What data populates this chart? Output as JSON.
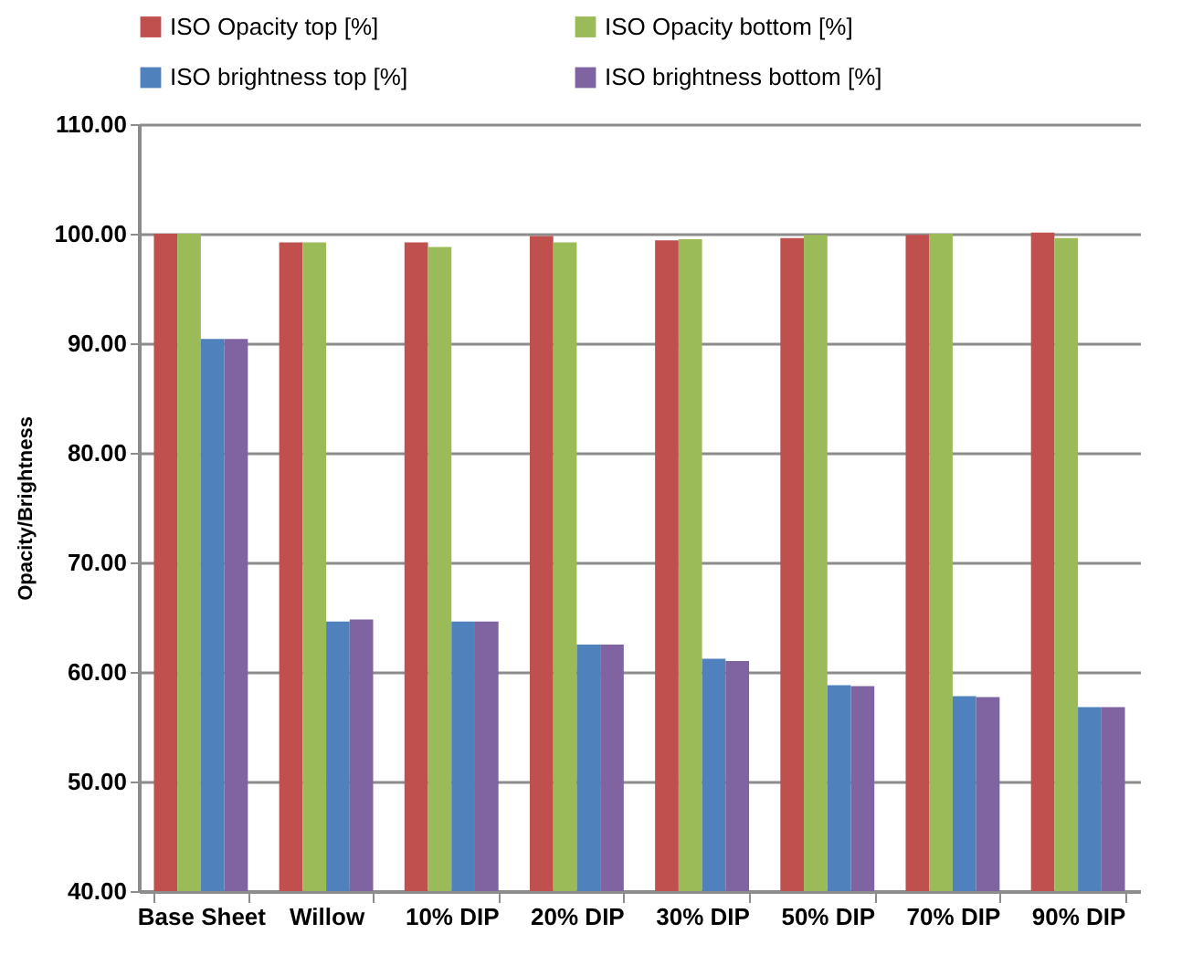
{
  "chart_data": {
    "type": "bar",
    "ylabel": "Opacity/Brightness",
    "categories": [
      "Base Sheet",
      "Willow",
      "10% DIP",
      "20% DIP",
      "30% DIP",
      "50% DIP",
      "70% DIP",
      "90% DIP"
    ],
    "series": [
      {
        "name": "ISO Opacity top [%]",
        "color": "#c0504d",
        "values": [
          100.0,
          99.2,
          99.2,
          99.8,
          99.4,
          99.6,
          99.9,
          100.1
        ]
      },
      {
        "name": "ISO Opacity bottom [%]",
        "color": "#9bbb59",
        "values": [
          100.0,
          99.2,
          98.8,
          99.2,
          99.5,
          99.9,
          100.0,
          99.6
        ]
      },
      {
        "name": "ISO brightness top [%]",
        "color": "#4f81bd",
        "values": [
          90.4,
          64.6,
          64.6,
          62.5,
          61.2,
          58.8,
          57.8,
          56.8
        ]
      },
      {
        "name": "ISO brightness bottom [%]",
        "color": "#8064a2",
        "values": [
          90.4,
          64.8,
          64.6,
          62.5,
          61.0,
          58.7,
          57.7,
          56.8
        ]
      }
    ],
    "ylim": [
      40,
      110
    ],
    "yticks": [
      {
        "value": 40,
        "label": "40.00"
      },
      {
        "value": 50,
        "label": "50.00"
      },
      {
        "value": 60,
        "label": "60.00"
      },
      {
        "value": 70,
        "label": "70.00"
      },
      {
        "value": 80,
        "label": "80.00"
      },
      {
        "value": 90,
        "label": "90.00"
      },
      {
        "value": 100,
        "label": "100.00"
      },
      {
        "value": 110,
        "label": "110.00"
      }
    ],
    "grid": "y",
    "legend": "top"
  }
}
